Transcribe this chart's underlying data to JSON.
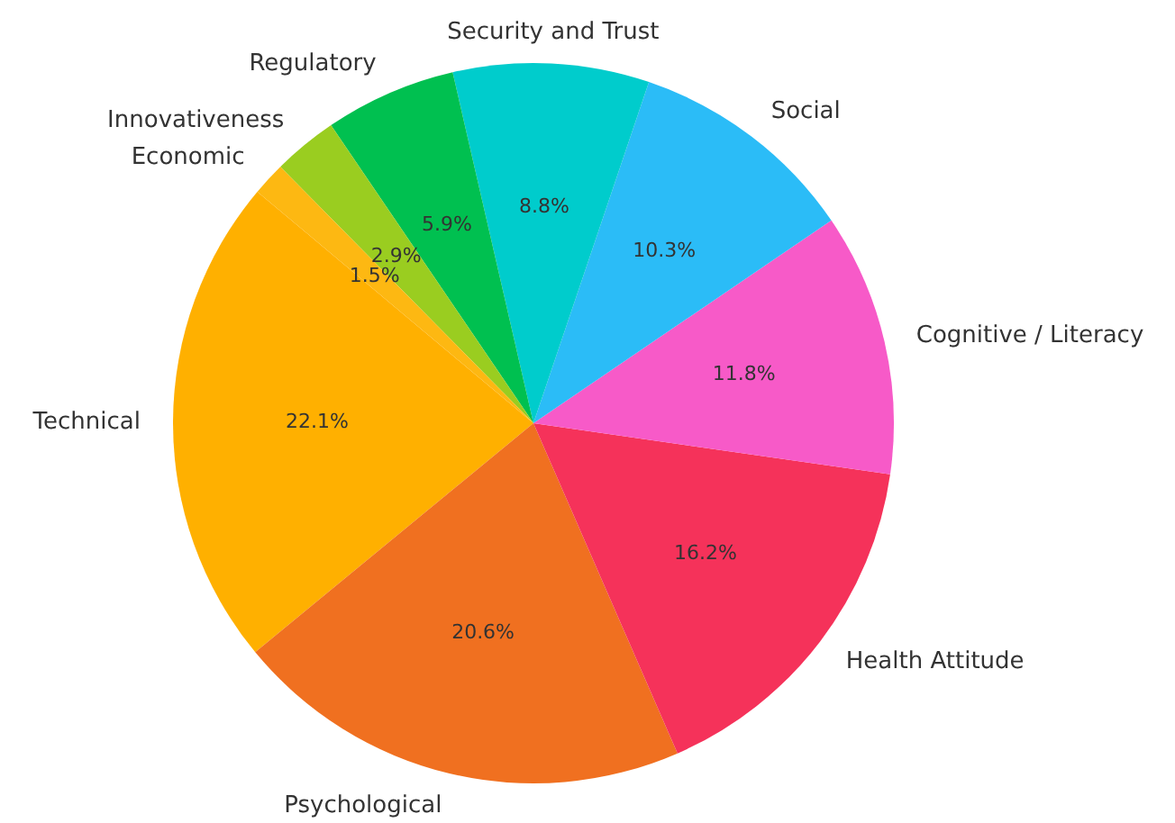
{
  "chart_data": {
    "type": "pie",
    "categories": [
      "Technical",
      "Psychological",
      "Health Attitude",
      "Cognitive / Literacy",
      "Social",
      "Security and Trust",
      "Regulatory",
      "Innovativeness",
      "Economic"
    ],
    "values": [
      22.1,
      20.6,
      16.2,
      11.8,
      10.3,
      8.8,
      5.9,
      2.9,
      1.5
    ],
    "value_labels": [
      "22.1%",
      "20.6%",
      "16.2%",
      "11.8%",
      "10.3%",
      "8.8%",
      "5.9%",
      "2.9%",
      "1.5%"
    ],
    "colors": [
      "#ffb000",
      "#f07020",
      "#f5325a",
      "#f75ac8",
      "#2bbcf7",
      "#00cccc",
      "#00c050",
      "#9acd20",
      "#fdb812"
    ]
  }
}
